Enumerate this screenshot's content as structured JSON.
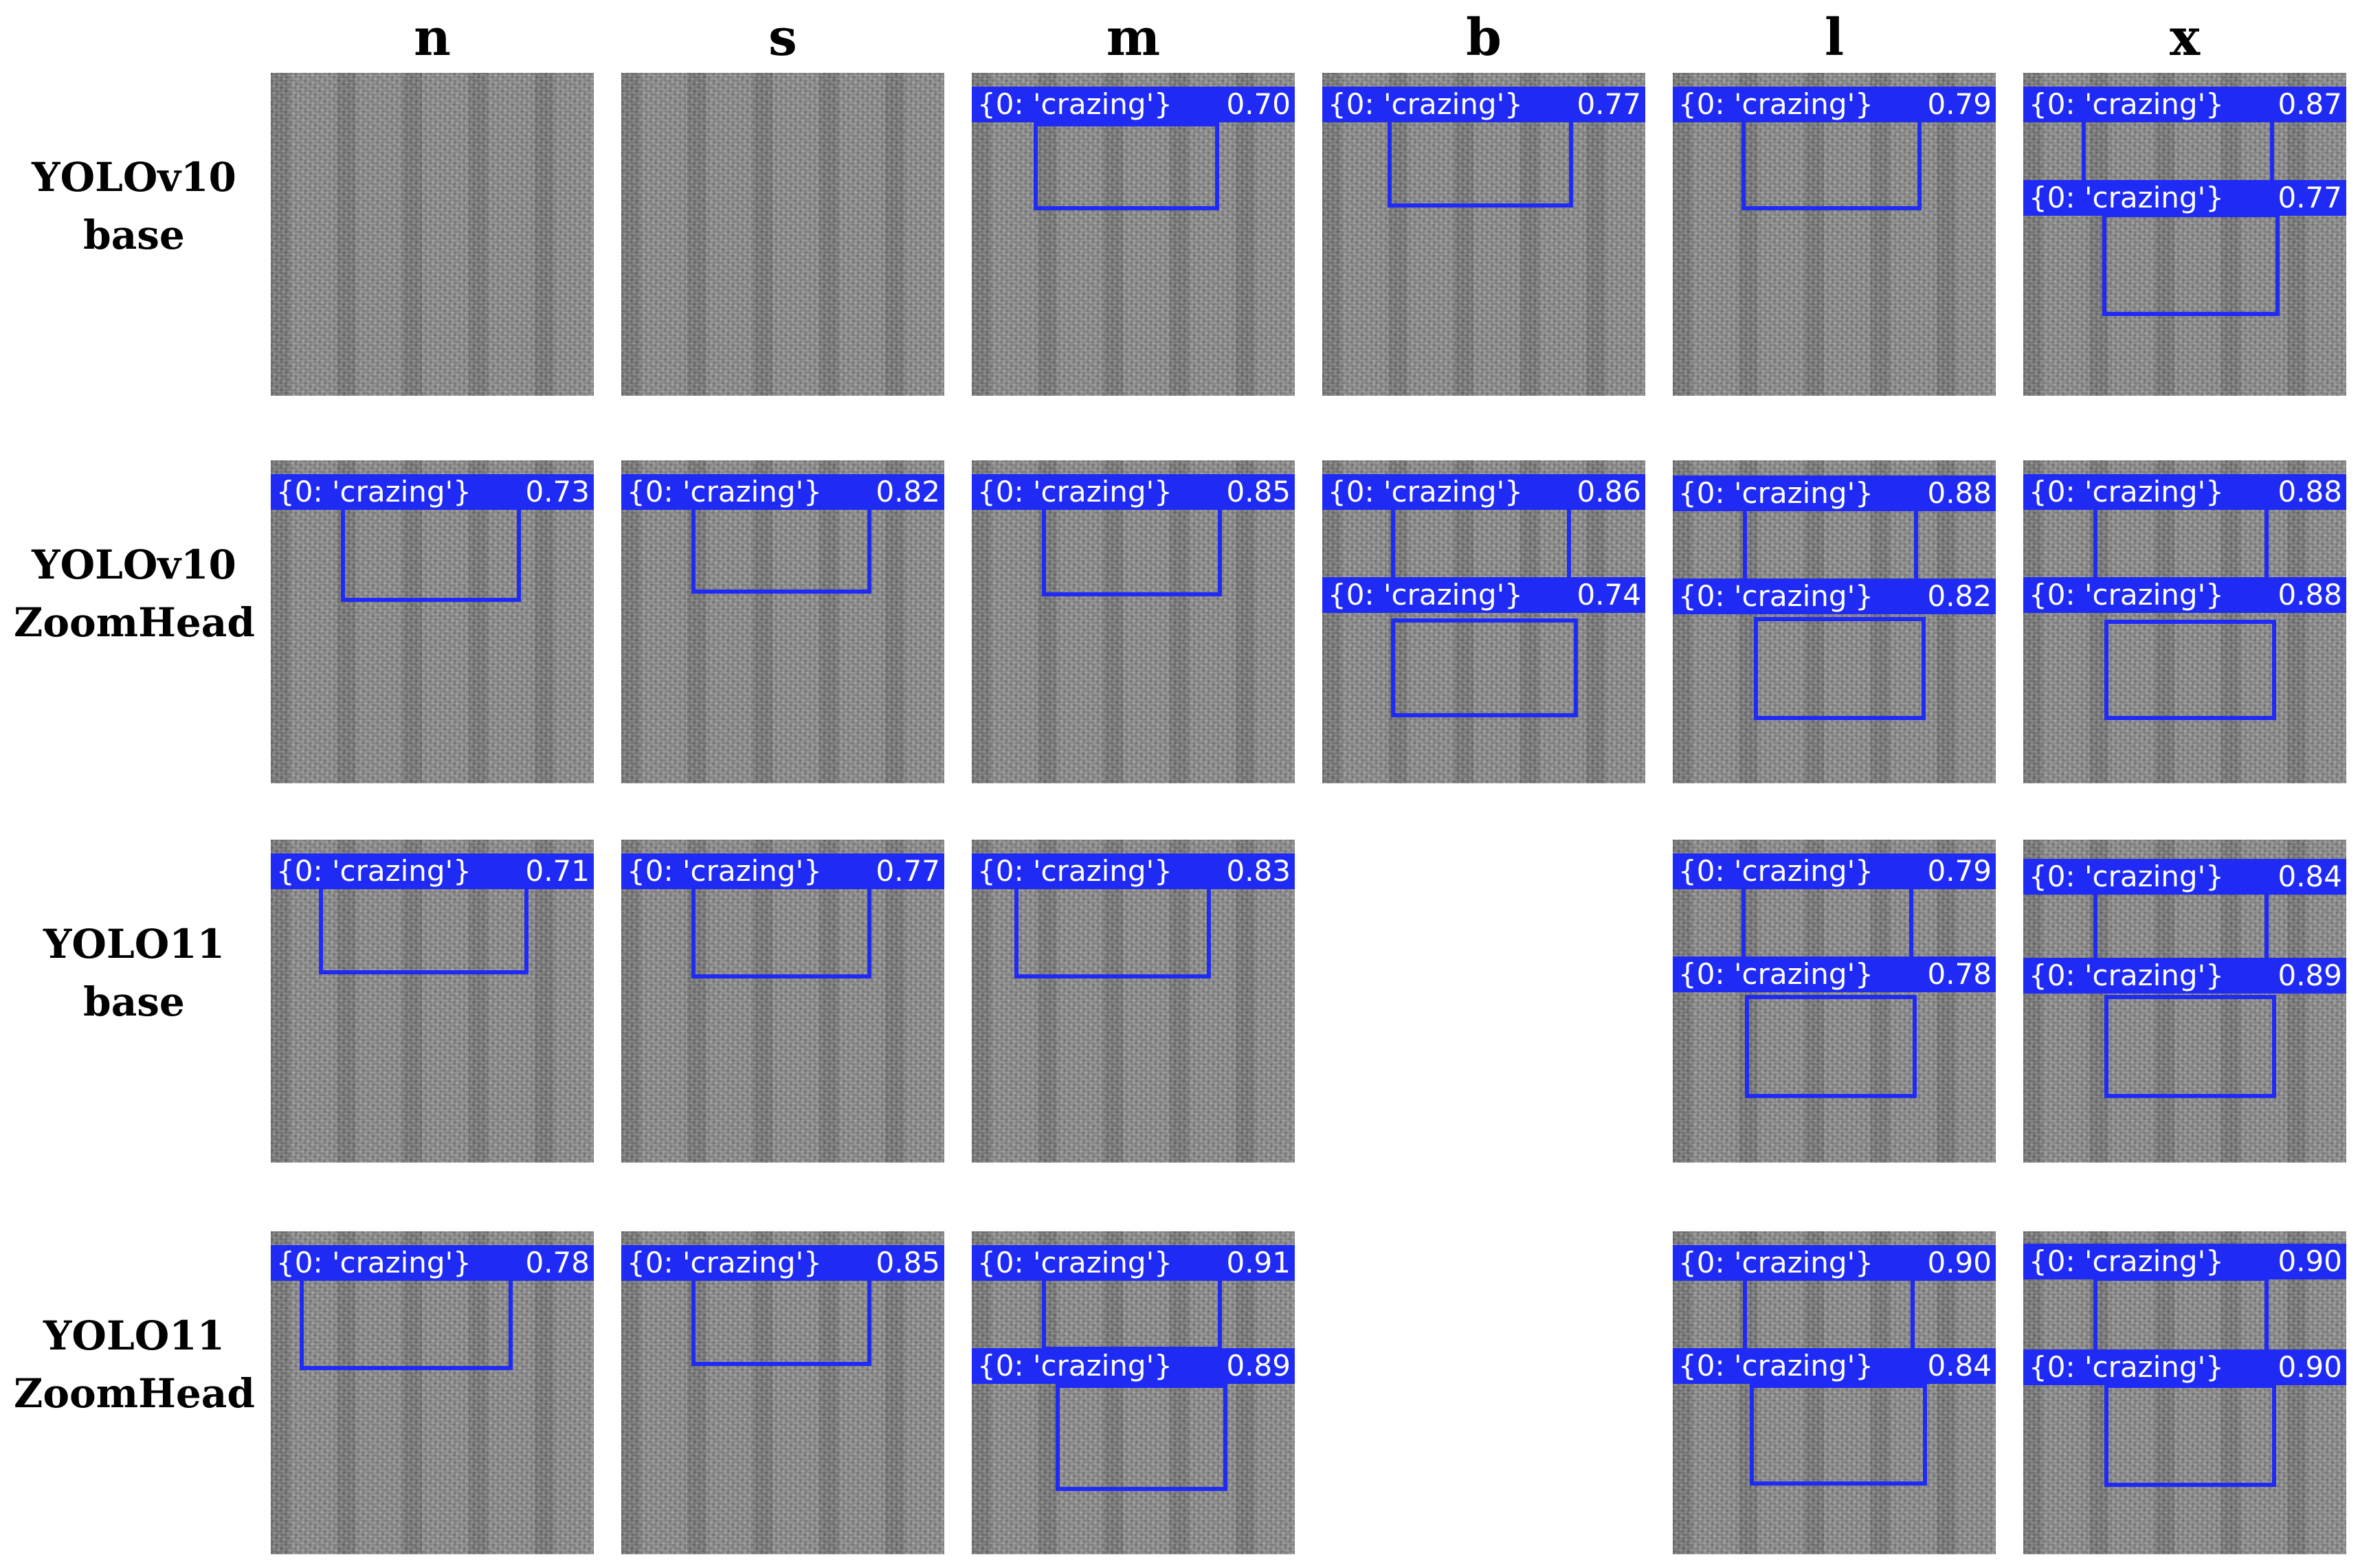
{
  "columns": [
    "n",
    "s",
    "m",
    "b",
    "l",
    "x"
  ],
  "rows": [
    {
      "label_line1": "YOLOv10",
      "label_line2": "base",
      "cells": [
        {
          "detections": []
        },
        {
          "detections": []
        },
        {
          "detections": [
            {
              "cls": "{0: 'crazing'}",
              "conf": "0.70"
            }
          ]
        },
        {
          "detections": [
            {
              "cls": "{0: 'crazing'}",
              "conf": "0.77"
            }
          ]
        },
        {
          "detections": [
            {
              "cls": "{0: 'crazing'}",
              "conf": "0.79"
            }
          ]
        },
        {
          "detections": [
            {
              "cls": "{0: 'crazing'}",
              "conf": "0.87"
            },
            {
              "cls": "{0: 'crazing'}",
              "conf": "0.77"
            }
          ]
        }
      ]
    },
    {
      "label_line1": "YOLOv10",
      "label_line2": "ZoomHead",
      "cells": [
        {
          "detections": [
            {
              "cls": "{0: 'crazing'}",
              "conf": "0.73"
            }
          ]
        },
        {
          "detections": [
            {
              "cls": "{0: 'crazing'}",
              "conf": "0.82"
            }
          ]
        },
        {
          "detections": [
            {
              "cls": "{0: 'crazing'}",
              "conf": "0.85"
            }
          ]
        },
        {
          "detections": [
            {
              "cls": "{0: 'crazing'}",
              "conf": "0.86"
            },
            {
              "cls": "{0: 'crazing'}",
              "conf": "0.74"
            }
          ]
        },
        {
          "detections": [
            {
              "cls": "{0: 'crazing'}",
              "conf": "0.88"
            },
            {
              "cls": "{0: 'crazing'}",
              "conf": "0.82"
            }
          ]
        },
        {
          "detections": [
            {
              "cls": "{0: 'crazing'}",
              "conf": "0.88"
            },
            {
              "cls": "{0: 'crazing'}",
              "conf": "0.88"
            }
          ]
        }
      ]
    },
    {
      "label_line1": "YOLO11",
      "label_line2": "base",
      "cells": [
        {
          "detections": [
            {
              "cls": "{0: 'crazing'}",
              "conf": "0.71"
            }
          ]
        },
        {
          "detections": [
            {
              "cls": "{0: 'crazing'}",
              "conf": "0.77"
            }
          ]
        },
        {
          "detections": [
            {
              "cls": "{0: 'crazing'}",
              "conf": "0.83"
            }
          ]
        },
        null,
        {
          "detections": [
            {
              "cls": "{0: 'crazing'}",
              "conf": "0.79"
            },
            {
              "cls": "{0: 'crazing'}",
              "conf": "0.78"
            }
          ]
        },
        {
          "detections": [
            {
              "cls": "{0: 'crazing'}",
              "conf": "0.84"
            },
            {
              "cls": "{0: 'crazing'}",
              "conf": "0.89"
            }
          ]
        }
      ]
    },
    {
      "label_line1": "YOLO11",
      "label_line2": "ZoomHead",
      "cells": [
        {
          "detections": [
            {
              "cls": "{0: 'crazing'}",
              "conf": "0.78"
            }
          ]
        },
        {
          "detections": [
            {
              "cls": "{0: 'crazing'}",
              "conf": "0.85"
            }
          ]
        },
        {
          "detections": [
            {
              "cls": "{0: 'crazing'}",
              "conf": "0.91"
            },
            {
              "cls": "{0: 'crazing'}",
              "conf": "0.89"
            }
          ]
        },
        null,
        {
          "detections": [
            {
              "cls": "{0: 'crazing'}",
              "conf": "0.90"
            },
            {
              "cls": "{0: 'crazing'}",
              "conf": "0.84"
            }
          ]
        },
        {
          "detections": [
            {
              "cls": "{0: 'crazing'}",
              "conf": "0.90"
            },
            {
              "cls": "{0: 'crazing'}",
              "conf": "0.90"
            }
          ]
        }
      ]
    }
  ],
  "colors": {
    "detection": "#1f2bf5",
    "label_text": "#ffffff",
    "texture_base": "#8a8a8a"
  }
}
